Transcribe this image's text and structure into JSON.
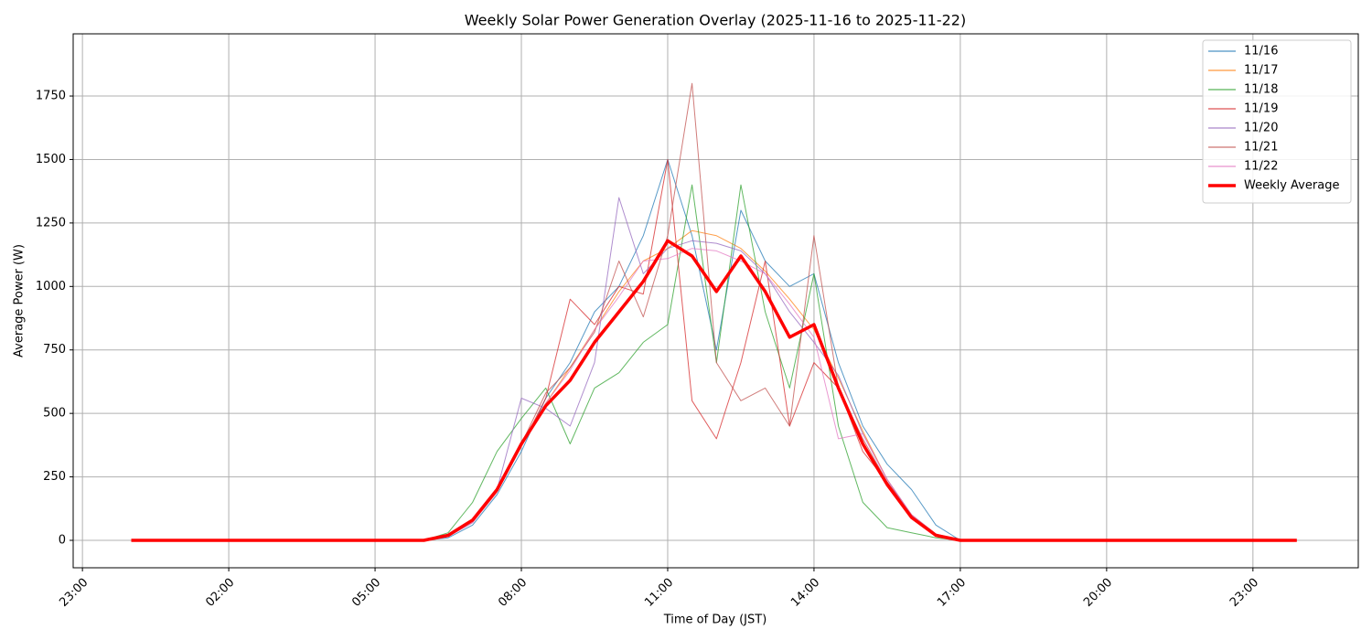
{
  "chart_data": {
    "type": "line",
    "title": "Weekly Solar Power Generation Overlay (2025-11-16 to 2025-11-22)",
    "x_label": "Time of Day (JST)",
    "y_label": "Average Power (W)",
    "x": [
      0,
      1,
      2,
      3,
      4,
      5,
      6,
      6.5,
      7,
      7.5,
      8,
      8.5,
      9,
      9.5,
      10,
      10.5,
      11,
      11.5,
      12,
      12.5,
      13,
      13.5,
      14,
      14.5,
      15,
      15.5,
      16,
      16.5,
      17,
      18,
      19,
      20,
      21,
      22,
      23,
      23.9
    ],
    "series": [
      {
        "name": "11/16",
        "color": "#1f77b4",
        "width": 1,
        "values": [
          0,
          0,
          0,
          0,
          0,
          0,
          0,
          10,
          60,
          180,
          350,
          560,
          700,
          900,
          1000,
          1200,
          1500,
          1200,
          750,
          1300,
          1100,
          1000,
          1050,
          700,
          450,
          300,
          200,
          60,
          0,
          0,
          0,
          0,
          0,
          0,
          0,
          0
        ]
      },
      {
        "name": "11/17",
        "color": "#ff7f0e",
        "width": 1,
        "values": [
          0,
          0,
          0,
          0,
          0,
          0,
          0,
          15,
          70,
          190,
          370,
          540,
          680,
          830,
          980,
          1100,
          1150,
          1220,
          1200,
          1150,
          1060,
          950,
          830,
          640,
          430,
          240,
          100,
          25,
          0,
          0,
          0,
          0,
          0,
          0,
          0,
          0
        ]
      },
      {
        "name": "11/18",
        "color": "#2ca02c",
        "width": 1,
        "values": [
          0,
          0,
          0,
          0,
          0,
          0,
          0,
          30,
          150,
          350,
          480,
          600,
          380,
          600,
          660,
          780,
          850,
          1400,
          700,
          1400,
          900,
          600,
          1050,
          450,
          150,
          50,
          30,
          10,
          0,
          0,
          0,
          0,
          0,
          0,
          0,
          0
        ]
      },
      {
        "name": "11/19",
        "color": "#d62728",
        "width": 1,
        "values": [
          0,
          0,
          0,
          0,
          0,
          0,
          0,
          15,
          80,
          200,
          370,
          560,
          950,
          850,
          1000,
          970,
          1500,
          550,
          400,
          700,
          1100,
          450,
          700,
          600,
          350,
          230,
          100,
          20,
          0,
          0,
          0,
          0,
          0,
          0,
          0,
          0
        ]
      },
      {
        "name": "11/20",
        "color": "#9467bd",
        "width": 1,
        "values": [
          0,
          0,
          0,
          0,
          0,
          0,
          0,
          15,
          70,
          200,
          560,
          520,
          450,
          700,
          1350,
          1050,
          1150,
          1180,
          1170,
          1140,
          1050,
          900,
          780,
          650,
          420,
          240,
          100,
          25,
          0,
          0,
          0,
          0,
          0,
          0,
          0,
          0
        ]
      },
      {
        "name": "11/21",
        "color": "#c0504d",
        "width": 1,
        "values": [
          0,
          0,
          0,
          0,
          0,
          0,
          0,
          15,
          80,
          200,
          380,
          580,
          680,
          820,
          1100,
          880,
          1200,
          1800,
          700,
          550,
          600,
          450,
          1200,
          600,
          400,
          230,
          100,
          25,
          0,
          0,
          0,
          0,
          0,
          0,
          0,
          0
        ]
      },
      {
        "name": "11/22",
        "color": "#e377c2",
        "width": 1,
        "values": [
          0,
          0,
          0,
          0,
          0,
          0,
          0,
          15,
          70,
          190,
          370,
          540,
          670,
          830,
          960,
          1100,
          1110,
          1150,
          1140,
          1100,
          1050,
          930,
          800,
          400,
          420,
          240,
          100,
          25,
          0,
          0,
          0,
          0,
          0,
          0,
          0,
          0
        ]
      },
      {
        "name": "Weekly Average",
        "color": "#ff0000",
        "width": 3.5,
        "values": [
          0,
          0,
          0,
          0,
          0,
          0,
          0,
          20,
          80,
          200,
          380,
          530,
          630,
          780,
          900,
          1020,
          1180,
          1120,
          980,
          1120,
          980,
          800,
          850,
          600,
          380,
          220,
          90,
          20,
          0,
          0,
          0,
          0,
          0,
          0,
          0,
          0
        ]
      }
    ],
    "xlim": [
      -1.19,
      25.16
    ],
    "xticks": [
      {
        "value": -1,
        "label": "23:00"
      },
      {
        "value": 2,
        "label": "02:00"
      },
      {
        "value": 5,
        "label": "05:00"
      },
      {
        "value": 8,
        "label": "08:00"
      },
      {
        "value": 11,
        "label": "11:00"
      },
      {
        "value": 14,
        "label": "14:00"
      },
      {
        "value": 17,
        "label": "17:00"
      },
      {
        "value": 20,
        "label": "20:00"
      },
      {
        "value": 23,
        "label": "23:00"
      }
    ],
    "ylim": [
      -108,
      1995
    ],
    "yticks": [
      0,
      250,
      500,
      750,
      1000,
      1250,
      1500,
      1750
    ],
    "grid": true,
    "legend": "upper right"
  }
}
